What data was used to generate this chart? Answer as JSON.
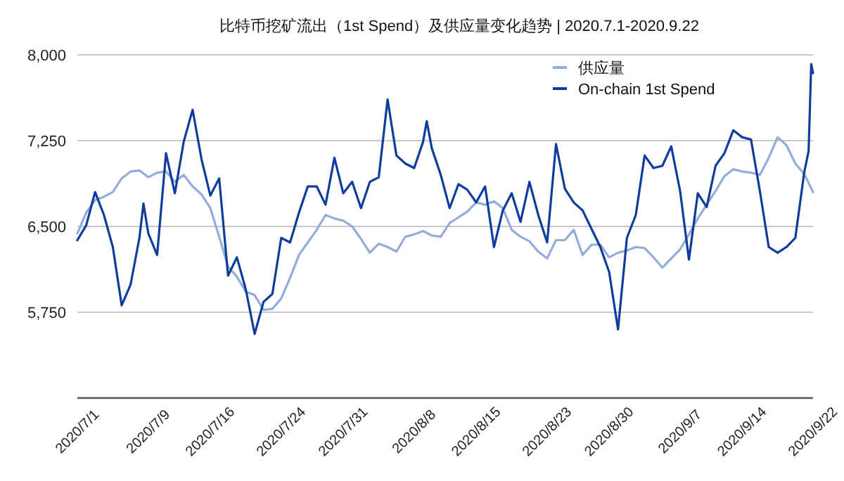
{
  "chart_data": {
    "type": "line",
    "title": "比特币挖矿流出（1st Spend）及供应量变化趋势 | 2020.7.1-2020.9.22",
    "x": [
      "2020-07-01",
      "2020-07-02",
      "2020-07-03",
      "2020-07-04",
      "2020-07-05",
      "2020-07-06",
      "2020-07-07",
      "2020-07-08",
      "2020-07-09",
      "2020-07-10",
      "2020-07-11",
      "2020-07-12",
      "2020-07-13",
      "2020-07-14",
      "2020-07-15",
      "2020-07-16",
      "2020-07-17",
      "2020-07-18",
      "2020-07-19",
      "2020-07-20",
      "2020-07-21",
      "2020-07-22",
      "2020-07-23",
      "2020-07-24",
      "2020-07-25",
      "2020-07-26",
      "2020-07-27",
      "2020-07-28",
      "2020-07-29",
      "2020-07-30",
      "2020-07-31",
      "2020-08-01",
      "2020-08-02",
      "2020-08-03",
      "2020-08-04",
      "2020-08-05",
      "2020-08-06",
      "2020-08-07",
      "2020-08-08",
      "2020-08-09",
      "2020-08-10",
      "2020-08-11",
      "2020-08-12",
      "2020-08-13",
      "2020-08-14",
      "2020-08-15",
      "2020-08-16",
      "2020-08-17",
      "2020-08-18",
      "2020-08-19",
      "2020-08-20",
      "2020-08-21",
      "2020-08-22",
      "2020-08-23",
      "2020-08-24",
      "2020-08-25",
      "2020-08-26",
      "2020-08-27",
      "2020-08-28",
      "2020-08-29",
      "2020-08-30",
      "2020-08-31",
      "2020-09-01",
      "2020-09-02",
      "2020-09-03",
      "2020-09-04",
      "2020-09-05",
      "2020-09-06",
      "2020-09-07",
      "2020-09-08",
      "2020-09-09",
      "2020-09-10",
      "2020-09-11",
      "2020-09-12",
      "2020-09-13",
      "2020-09-14",
      "2020-09-15",
      "2020-09-16",
      "2020-09-17",
      "2020-09-18",
      "2020-09-19",
      "2020-09-20",
      "2020-09-21",
      "2020-09-22"
    ],
    "series": [
      {
        "name": "供应量",
        "color": "#93acd9",
        "values": [
          6440,
          6620,
          6730,
          6760,
          6800,
          6920,
          6980,
          6990,
          6930,
          6970,
          6980,
          6890,
          6950,
          6850,
          6780,
          6660,
          6410,
          6150,
          6060,
          5930,
          5900,
          5770,
          5780,
          5870,
          6050,
          6250,
          6360,
          6470,
          6600,
          6570,
          6550,
          6500,
          6390,
          6270,
          6350,
          6320,
          6280,
          6410,
          6430,
          6460,
          6420,
          6410,
          6530,
          6580,
          6630,
          6710,
          6690,
          6720,
          6660,
          6470,
          6410,
          6370,
          6280,
          6220,
          6380,
          6380,
          6470,
          6250,
          6340,
          6340,
          6230,
          6270,
          6290,
          6320,
          6310,
          6230,
          6140,
          6220,
          6300,
          6430,
          6570,
          6690,
          6810,
          6940,
          7000,
          6980,
          6970,
          6950,
          7100,
          7280,
          7210,
          7050,
          6960,
          6800
        ]
      },
      {
        "name": "On-chain 1st Spend",
        "color": "#0f3d9e",
        "x": [
          "2020-07-01",
          "2020-07-02",
          "2020-07-03",
          "2020-07-04",
          "2020-07-05",
          "2020-07-06",
          "2020-07-07",
          "2020-07-08",
          "2020-07-08T11:00",
          "2020-07-09",
          "2020-07-10",
          "2020-07-11",
          "2020-07-12",
          "2020-07-13",
          "2020-07-14",
          "2020-07-15",
          "2020-07-16",
          "2020-07-17",
          "2020-07-18",
          "2020-07-19",
          "2020-07-20",
          "2020-07-21",
          "2020-07-22",
          "2020-07-23",
          "2020-07-24",
          "2020-07-25",
          "2020-07-26",
          "2020-07-27",
          "2020-07-28",
          "2020-07-29",
          "2020-07-30",
          "2020-07-31",
          "2020-08-01",
          "2020-08-02",
          "2020-08-03",
          "2020-08-04",
          "2020-08-05",
          "2020-08-06",
          "2020-08-07",
          "2020-08-08",
          "2020-08-09",
          "2020-08-09T10:00",
          "2020-08-10",
          "2020-08-11",
          "2020-08-12",
          "2020-08-13",
          "2020-08-14",
          "2020-08-15",
          "2020-08-16",
          "2020-08-17",
          "2020-08-18",
          "2020-08-19",
          "2020-08-20",
          "2020-08-21",
          "2020-08-22",
          "2020-08-23",
          "2020-08-24",
          "2020-08-25",
          "2020-08-26",
          "2020-08-27",
          "2020-08-28",
          "2020-08-29",
          "2020-08-30",
          "2020-08-31",
          "2020-09-01",
          "2020-09-02",
          "2020-09-03",
          "2020-09-04",
          "2020-09-05",
          "2020-09-06",
          "2020-09-07",
          "2020-09-08",
          "2020-09-09",
          "2020-09-10",
          "2020-09-11",
          "2020-09-12",
          "2020-09-13",
          "2020-09-14",
          "2020-09-15",
          "2020-09-16",
          "2020-09-17",
          "2020-09-18",
          "2020-09-19",
          "2020-09-20",
          "2020-09-21",
          "2020-09-21T12:00",
          "2020-09-21T19:00",
          "2020-09-22"
        ],
        "values": [
          6380,
          6510,
          6800,
          6600,
          6320,
          5810,
          5990,
          6400,
          6700,
          6440,
          6250,
          7140,
          6790,
          7240,
          7520,
          7090,
          6770,
          6920,
          6070,
          6230,
          5950,
          5560,
          5840,
          5910,
          6400,
          6360,
          6620,
          6850,
          6850,
          6690,
          7100,
          6790,
          6890,
          6660,
          6890,
          6930,
          7610,
          7120,
          7050,
          7010,
          7240,
          7420,
          7180,
          6950,
          6660,
          6870,
          6820,
          6710,
          6850,
          6320,
          6640,
          6790,
          6540,
          6890,
          6600,
          6360,
          7220,
          6830,
          6710,
          6640,
          6480,
          6320,
          6100,
          5600,
          6400,
          6600,
          7120,
          7010,
          7030,
          7200,
          6810,
          6210,
          6790,
          6670,
          7030,
          7140,
          7340,
          7280,
          7260,
          6810,
          6320,
          6270,
          6320,
          6400,
          6970,
          7160,
          7920,
          7840
        ]
      }
    ],
    "xlim": [
      "2020-07-01",
      "2020-09-22"
    ],
    "xticks": [
      {
        "value": "2020-07-01",
        "label": "2020/7/1"
      },
      {
        "value": "2020-07-09",
        "label": "2020/7/9"
      },
      {
        "value": "2020-07-16",
        "label": "2020/7/16"
      },
      {
        "value": "2020-07-24",
        "label": "2020/7/24"
      },
      {
        "value": "2020-07-31",
        "label": "2020/7/31"
      },
      {
        "value": "2020-08-08",
        "label": "2020/8/8"
      },
      {
        "value": "2020-08-15",
        "label": "2020/8/15"
      },
      {
        "value": "2020-08-23",
        "label": "2020/8/23"
      },
      {
        "value": "2020-08-30",
        "label": "2020/8/30"
      },
      {
        "value": "2020-09-07",
        "label": "2020/9/7"
      },
      {
        "value": "2020-09-14",
        "label": "2020/9/14"
      },
      {
        "value": "2020-09-22",
        "label": "2020/9/22"
      }
    ],
    "ylim": [
      5000,
      8000
    ],
    "yticks": [
      {
        "value": 5750,
        "label": "5,750"
      },
      {
        "value": 6500,
        "label": "6,500"
      },
      {
        "value": 7250,
        "label": "7,250"
      },
      {
        "value": 8000,
        "label": "8,000"
      }
    ],
    "grid": "y",
    "legend": "top right",
    "marker": "none",
    "line_style": "solid"
  }
}
